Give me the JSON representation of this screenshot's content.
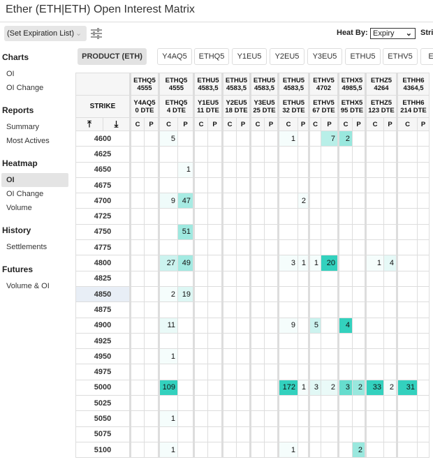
{
  "title": "Ether (ETH|ETH) Open Interest Matrix",
  "toolbar": {
    "expiration_list": "(Set Expiration List)",
    "heat_by_label": "Heat By:",
    "heat_by_value": "Expiry",
    "strike_label_clipped": "Stri"
  },
  "colors": {
    "heat": "#33d1be",
    "header_bg": "#f6f6f6",
    "selected_bg": "#e4e4e4",
    "highlight_strike": "#e8eef6"
  },
  "sidebar": [
    {
      "header": "Charts",
      "items": [
        {
          "label": "OI"
        },
        {
          "label": "OI Change"
        }
      ]
    },
    {
      "header": "Reports",
      "items": [
        {
          "label": "Summary"
        },
        {
          "label": "Most Actives"
        }
      ]
    },
    {
      "header": "Heatmap",
      "items": [
        {
          "label": "OI",
          "selected": true
        },
        {
          "label": "OI Change"
        },
        {
          "label": "Volume"
        }
      ]
    },
    {
      "header": "History",
      "items": [
        {
          "label": "Settlements"
        }
      ]
    },
    {
      "header": "Futures",
      "items": [
        {
          "label": "Volume & OI"
        }
      ]
    }
  ],
  "tabs": [
    {
      "label": "PRODUCT (ETH)",
      "selected": true
    },
    {
      "label": "Y4AQ5"
    },
    {
      "label": "ETHQ5"
    },
    {
      "label": "Y1EU5"
    },
    {
      "label": "Y2EU5"
    },
    {
      "label": "Y3EU5"
    },
    {
      "label": "ETHU5"
    },
    {
      "label": "ETHV5"
    },
    {
      "label": "E"
    }
  ],
  "matrix": {
    "strike_header": "STRIKE",
    "call_label": "C",
    "put_label": "P",
    "expiries": [
      {
        "future": "ETHQ5",
        "future_price": "4555",
        "option": "Y4AQ5",
        "dte": "0 DTE"
      },
      {
        "future": "ETHQ5",
        "future_price": "4555",
        "option": "ETHQ5",
        "dte": "4 DTE"
      },
      {
        "future": "ETHU5",
        "future_price": "4583,5",
        "option": "Y1EU5",
        "dte": "11 DTE"
      },
      {
        "future": "ETHU5",
        "future_price": "4583,5",
        "option": "Y2EU5",
        "dte": "18 DTE"
      },
      {
        "future": "ETHU5",
        "future_price": "4583,5",
        "option": "Y3EU5",
        "dte": "25 DTE"
      },
      {
        "future": "ETHU5",
        "future_price": "4583,5",
        "option": "ETHU5",
        "dte": "32 DTE"
      },
      {
        "future": "ETHV5",
        "future_price": "4702",
        "option": "ETHV5",
        "dte": "67 DTE"
      },
      {
        "future": "ETHX5",
        "future_price": "4985,5",
        "option": "ETHX5",
        "dte": "95 DTE"
      },
      {
        "future": "ETHZ5",
        "future_price": "4264",
        "option": "ETHZ5",
        "dte": "123 DTE"
      },
      {
        "future": "ETHH6",
        "future_price": "4364,5",
        "option": "ETHH6",
        "dte": "214 DTE"
      }
    ],
    "highlighted_strike": "4850",
    "rows": [
      {
        "strike": "4600",
        "cells": [
          [
            null,
            null
          ],
          [
            5,
            null
          ],
          [
            null,
            null
          ],
          [
            null,
            null
          ],
          [
            null,
            null
          ],
          [
            1,
            null
          ],
          [
            null,
            7
          ],
          [
            2,
            null
          ],
          [
            null,
            null
          ],
          [
            null,
            null
          ]
        ]
      },
      {
        "strike": "4625",
        "cells": []
      },
      {
        "strike": "4650",
        "cells": [
          [
            null,
            null
          ],
          [
            null,
            1
          ]
        ]
      },
      {
        "strike": "4675",
        "cells": []
      },
      {
        "strike": "4700",
        "cells": [
          [
            null,
            null
          ],
          [
            9,
            47
          ],
          [
            null,
            null
          ],
          [
            null,
            null
          ],
          [
            null,
            null
          ],
          [
            null,
            2
          ]
        ]
      },
      {
        "strike": "4725",
        "cells": []
      },
      {
        "strike": "4750",
        "cells": [
          [
            null,
            null
          ],
          [
            null,
            51
          ]
        ]
      },
      {
        "strike": "4775",
        "cells": []
      },
      {
        "strike": "4800",
        "cells": [
          [
            null,
            null
          ],
          [
            27,
            49
          ],
          [
            null,
            null
          ],
          [
            null,
            null
          ],
          [
            null,
            null
          ],
          [
            3,
            1
          ],
          [
            1,
            20
          ],
          [
            null,
            null
          ],
          [
            1,
            4
          ],
          [
            null,
            null
          ]
        ]
      },
      {
        "strike": "4825",
        "cells": []
      },
      {
        "strike": "4850",
        "cells": [
          [
            null,
            null
          ],
          [
            2,
            19
          ]
        ]
      },
      {
        "strike": "4875",
        "cells": []
      },
      {
        "strike": "4900",
        "cells": [
          [
            null,
            null
          ],
          [
            11,
            null
          ],
          [
            null,
            null
          ],
          [
            null,
            null
          ],
          [
            null,
            null
          ],
          [
            9,
            null
          ],
          [
            5,
            null
          ],
          [
            4,
            null
          ]
        ]
      },
      {
        "strike": "4925",
        "cells": []
      },
      {
        "strike": "4950",
        "cells": [
          [
            null,
            null
          ],
          [
            1,
            null
          ]
        ]
      },
      {
        "strike": "4975",
        "cells": []
      },
      {
        "strike": "5000",
        "cells": [
          [
            null,
            null
          ],
          [
            109,
            null
          ],
          [
            null,
            null
          ],
          [
            null,
            null
          ],
          [
            null,
            null
          ],
          [
            172,
            1
          ],
          [
            3,
            2
          ],
          [
            3,
            2
          ],
          [
            33,
            2
          ],
          [
            31,
            null
          ]
        ]
      },
      {
        "strike": "5025",
        "cells": []
      },
      {
        "strike": "5050",
        "cells": [
          [
            null,
            null
          ],
          [
            1,
            null
          ]
        ]
      },
      {
        "strike": "5075",
        "cells": []
      },
      {
        "strike": "5100",
        "cells": [
          [
            null,
            null
          ],
          [
            1,
            null
          ],
          [
            null,
            null
          ],
          [
            null,
            null
          ],
          [
            null,
            null
          ],
          [
            1,
            null
          ],
          [
            null,
            null
          ],
          [
            null,
            2
          ]
        ]
      }
    ]
  }
}
